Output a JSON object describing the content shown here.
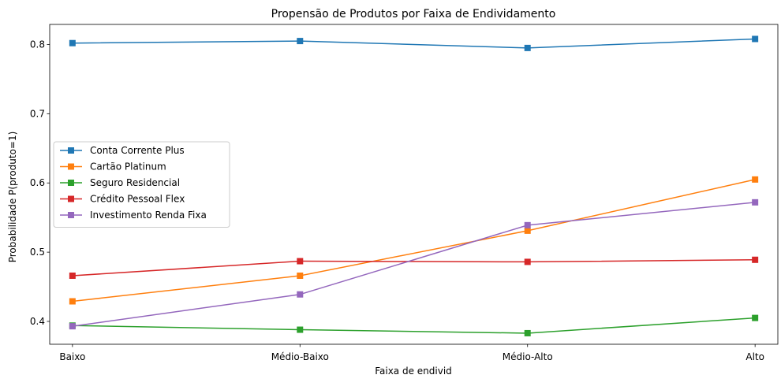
{
  "chart_data": {
    "type": "line",
    "title": "Propensão de Produtos por Faixa de Endividamento",
    "xlabel": "Faixa de endivid",
    "ylabel": "Probabilidade P(produto=1)",
    "categories": [
      "Baixo",
      "Médio-Baixo",
      "Médio-Alto",
      "Alto"
    ],
    "ylim": [
      0.367,
      0.829
    ],
    "yticks": [
      0.4,
      0.5,
      0.6,
      0.7,
      0.8
    ],
    "ytick_labels": [
      "0.4",
      "0.5",
      "0.6",
      "0.7",
      "0.8"
    ],
    "legend_position": "center-left",
    "grid": false,
    "marker": "square",
    "series": [
      {
        "name": "Conta Corrente Plus",
        "color": "#1f77b4",
        "values": [
          0.802,
          0.805,
          0.795,
          0.808
        ]
      },
      {
        "name": "Cartão Platinum",
        "color": "#ff7f0e",
        "values": [
          0.429,
          0.466,
          0.531,
          0.605
        ]
      },
      {
        "name": "Seguro Residencial",
        "color": "#2ca02c",
        "values": [
          0.394,
          0.388,
          0.383,
          0.405
        ]
      },
      {
        "name": "Crédito Pessoal Flex",
        "color": "#d62728",
        "values": [
          0.466,
          0.487,
          0.486,
          0.489
        ]
      },
      {
        "name": "Investimento Renda Fixa",
        "color": "#9467bd",
        "values": [
          0.393,
          0.439,
          0.539,
          0.572
        ]
      }
    ]
  }
}
